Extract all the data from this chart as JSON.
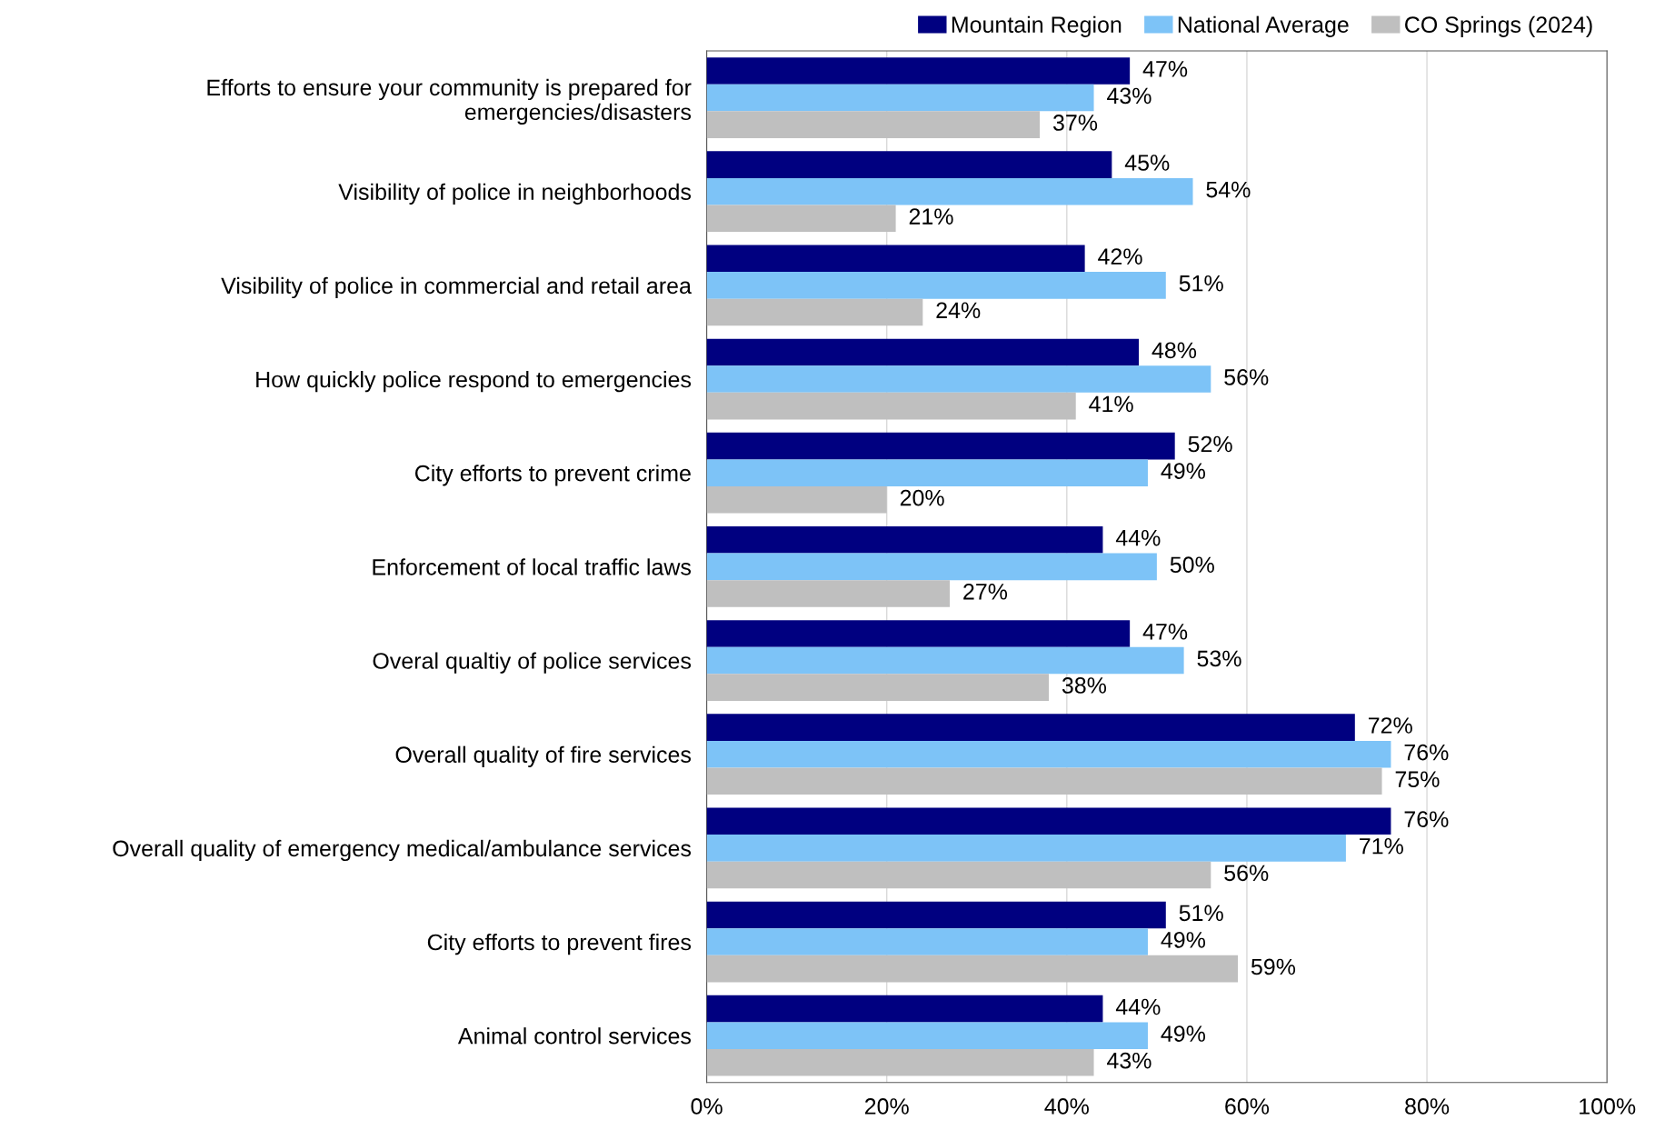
{
  "chart_data": {
    "type": "bar",
    "orientation": "horizontal",
    "categories": [
      "Efforts to ensure your community is prepared for emergencies/disasters",
      "Visibility of police in neighborhoods",
      "Visibility of police in commercial and retail area",
      "How quickly police respond to emergencies",
      "City efforts to prevent crime",
      "Enforcement of local traffic laws",
      "Overal qualtiy of police services",
      "Overall quality of fire services",
      "Overall quality of emergency medical/ambulance services",
      "City efforts to prevent fires",
      "Animal control services"
    ],
    "series": [
      {
        "name": "Mountain Region",
        "color": "#000080",
        "values": [
          47,
          45,
          42,
          48,
          52,
          44,
          47,
          72,
          76,
          51,
          44
        ],
        "value_labels": [
          "47%",
          "45%",
          "42%",
          "48%",
          "52%",
          "44%",
          "47%",
          "72%",
          "76%",
          "51%",
          "44%"
        ]
      },
      {
        "name": "National Average",
        "color": "#7dc3f7",
        "values": [
          43,
          54,
          51,
          56,
          49,
          50,
          53,
          76,
          71,
          49,
          49
        ],
        "value_labels": [
          "43%",
          "54%",
          "51%",
          "56%",
          "49%",
          "50%",
          "53%",
          "76%",
          "71%",
          "49%",
          "49%"
        ]
      },
      {
        "name": "CO Springs (2024)",
        "color": "#bfbfbf",
        "values": [
          37,
          21,
          24,
          41,
          20,
          27,
          38,
          75,
          56,
          59,
          43
        ],
        "value_labels": [
          "37%",
          "21%",
          "24%",
          "41%",
          "20%",
          "27%",
          "38%",
          "75%",
          "56%",
          "59%",
          "43%"
        ]
      }
    ],
    "xlim": [
      0,
      100
    ],
    "xticks": [
      {
        "value": 0,
        "label": "0%"
      },
      {
        "value": 20,
        "label": "20%"
      },
      {
        "value": 40,
        "label": "40%"
      },
      {
        "value": 60,
        "label": "60%"
      },
      {
        "value": 80,
        "label": "80%"
      },
      {
        "value": 100,
        "label": "100%"
      }
    ],
    "grid": "x",
    "legend": "top right"
  }
}
